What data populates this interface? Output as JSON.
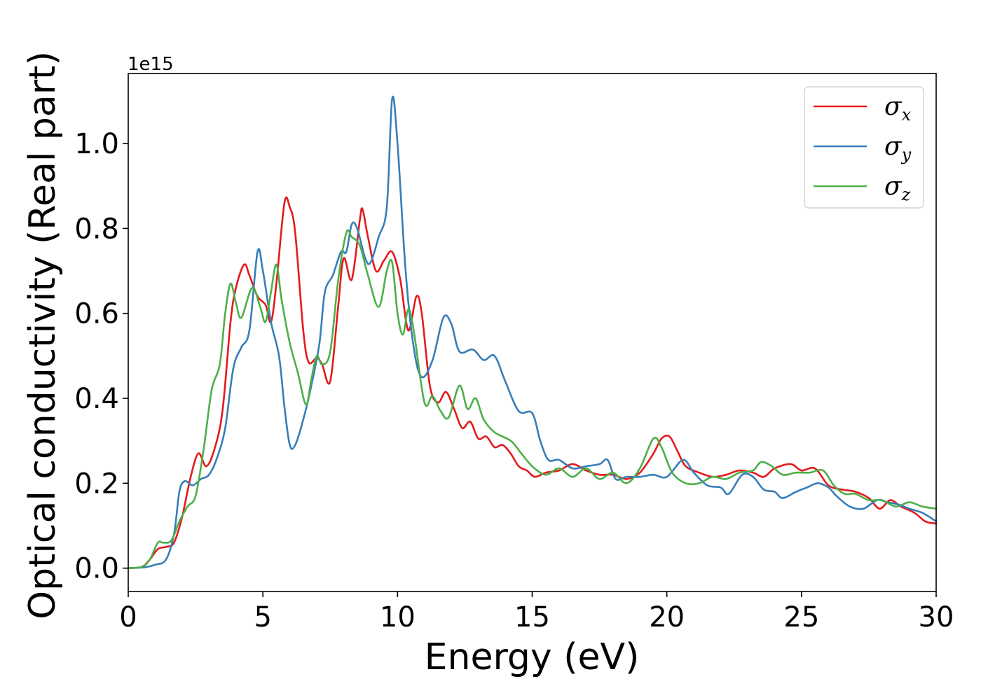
{
  "chart_data": {
    "type": "line",
    "title": "",
    "xlabel": "Energy (eV)",
    "ylabel": "Optical conductivity (Real part)",
    "y_offset_label": "1e15",
    "xlim": [
      0,
      30
    ],
    "ylim": [
      -0.055,
      1.165
    ],
    "x_ticks": [
      0,
      5,
      10,
      15,
      20,
      25,
      30
    ],
    "x_tick_labels": [
      "0",
      "5",
      "10",
      "15",
      "20",
      "25",
      "30"
    ],
    "y_ticks": [
      0.0,
      0.2,
      0.4,
      0.6,
      0.8,
      1.0
    ],
    "y_tick_labels": [
      "0.0",
      "0.2",
      "0.4",
      "0.6",
      "0.8",
      "1.0"
    ],
    "grid": false,
    "legend_position": "top-right",
    "series": [
      {
        "name": "σx",
        "legend_symbol": "σ",
        "legend_subscript": "x",
        "color": "#e41a1c",
        "points": [
          [
            0,
            0
          ],
          [
            0.5,
            0.003
          ],
          [
            0.8,
            0.02
          ],
          [
            1.1,
            0.045
          ],
          [
            1.4,
            0.05
          ],
          [
            1.7,
            0.06
          ],
          [
            2.0,
            0.12
          ],
          [
            2.3,
            0.21
          ],
          [
            2.6,
            0.27
          ],
          [
            2.9,
            0.24
          ],
          [
            3.2,
            0.28
          ],
          [
            3.5,
            0.37
          ],
          [
            3.8,
            0.58
          ],
          [
            4.0,
            0.66
          ],
          [
            4.3,
            0.715
          ],
          [
            4.5,
            0.69
          ],
          [
            4.8,
            0.64
          ],
          [
            5.1,
            0.62
          ],
          [
            5.3,
            0.58
          ],
          [
            5.5,
            0.67
          ],
          [
            5.8,
            0.86
          ],
          [
            6.0,
            0.85
          ],
          [
            6.2,
            0.79
          ],
          [
            6.5,
            0.56
          ],
          [
            6.7,
            0.485
          ],
          [
            7.0,
            0.495
          ],
          [
            7.2,
            0.48
          ],
          [
            7.5,
            0.44
          ],
          [
            7.8,
            0.62
          ],
          [
            8.0,
            0.73
          ],
          [
            8.3,
            0.68
          ],
          [
            8.6,
            0.82
          ],
          [
            8.7,
            0.845
          ],
          [
            8.9,
            0.78
          ],
          [
            9.2,
            0.7
          ],
          [
            9.5,
            0.725
          ],
          [
            9.8,
            0.745
          ],
          [
            10.1,
            0.68
          ],
          [
            10.4,
            0.56
          ],
          [
            10.7,
            0.64
          ],
          [
            10.9,
            0.6
          ],
          [
            11.2,
            0.43
          ],
          [
            11.5,
            0.39
          ],
          [
            11.8,
            0.415
          ],
          [
            12.1,
            0.375
          ],
          [
            12.4,
            0.33
          ],
          [
            12.7,
            0.345
          ],
          [
            13.0,
            0.305
          ],
          [
            13.3,
            0.31
          ],
          [
            13.6,
            0.285
          ],
          [
            13.9,
            0.29
          ],
          [
            14.2,
            0.27
          ],
          [
            14.5,
            0.24
          ],
          [
            14.8,
            0.23
          ],
          [
            15.1,
            0.215
          ],
          [
            15.5,
            0.225
          ],
          [
            16.0,
            0.23
          ],
          [
            16.5,
            0.245
          ],
          [
            17.0,
            0.23
          ],
          [
            17.5,
            0.22
          ],
          [
            18.0,
            0.22
          ],
          [
            18.5,
            0.21
          ],
          [
            19.0,
            0.225
          ],
          [
            19.5,
            0.27
          ],
          [
            19.8,
            0.305
          ],
          [
            20.1,
            0.31
          ],
          [
            20.4,
            0.275
          ],
          [
            20.7,
            0.24
          ],
          [
            21.2,
            0.225
          ],
          [
            21.7,
            0.215
          ],
          [
            22.2,
            0.22
          ],
          [
            22.7,
            0.23
          ],
          [
            23.2,
            0.225
          ],
          [
            23.6,
            0.215
          ],
          [
            24.0,
            0.235
          ],
          [
            24.6,
            0.245
          ],
          [
            25.0,
            0.23
          ],
          [
            25.5,
            0.235
          ],
          [
            26.0,
            0.195
          ],
          [
            26.5,
            0.185
          ],
          [
            27.0,
            0.18
          ],
          [
            27.5,
            0.165
          ],
          [
            27.9,
            0.14
          ],
          [
            28.3,
            0.16
          ],
          [
            28.7,
            0.145
          ],
          [
            29.2,
            0.13
          ],
          [
            29.6,
            0.11
          ],
          [
            30.0,
            0.105
          ]
        ]
      },
      {
        "name": "σy",
        "legend_symbol": "σ",
        "legend_subscript": "y",
        "color": "#377eb8",
        "points": [
          [
            0,
            0
          ],
          [
            0.6,
            0.002
          ],
          [
            1.0,
            0.008
          ],
          [
            1.4,
            0.02
          ],
          [
            1.7,
            0.08
          ],
          [
            1.9,
            0.18
          ],
          [
            2.1,
            0.205
          ],
          [
            2.4,
            0.195
          ],
          [
            2.7,
            0.21
          ],
          [
            3.0,
            0.22
          ],
          [
            3.3,
            0.26
          ],
          [
            3.6,
            0.33
          ],
          [
            3.9,
            0.47
          ],
          [
            4.2,
            0.52
          ],
          [
            4.5,
            0.56
          ],
          [
            4.8,
            0.745
          ],
          [
            5.0,
            0.7
          ],
          [
            5.3,
            0.58
          ],
          [
            5.6,
            0.5
          ],
          [
            5.8,
            0.38
          ],
          [
            6.0,
            0.29
          ],
          [
            6.2,
            0.29
          ],
          [
            6.5,
            0.35
          ],
          [
            6.8,
            0.43
          ],
          [
            7.1,
            0.53
          ],
          [
            7.3,
            0.65
          ],
          [
            7.6,
            0.69
          ],
          [
            7.9,
            0.745
          ],
          [
            8.1,
            0.745
          ],
          [
            8.3,
            0.81
          ],
          [
            8.5,
            0.8
          ],
          [
            8.8,
            0.73
          ],
          [
            9.0,
            0.72
          ],
          [
            9.3,
            0.78
          ],
          [
            9.6,
            0.85
          ],
          [
            9.8,
            1.105
          ],
          [
            10.0,
            1.0
          ],
          [
            10.3,
            0.7
          ],
          [
            10.6,
            0.52
          ],
          [
            10.9,
            0.45
          ],
          [
            11.3,
            0.49
          ],
          [
            11.7,
            0.59
          ],
          [
            12.0,
            0.575
          ],
          [
            12.3,
            0.51
          ],
          [
            12.8,
            0.515
          ],
          [
            13.2,
            0.49
          ],
          [
            13.6,
            0.5
          ],
          [
            14.0,
            0.44
          ],
          [
            14.5,
            0.37
          ],
          [
            15.0,
            0.365
          ],
          [
            15.3,
            0.3
          ],
          [
            15.6,
            0.255
          ],
          [
            16.0,
            0.255
          ],
          [
            16.5,
            0.235
          ],
          [
            17.0,
            0.24
          ],
          [
            17.5,
            0.245
          ],
          [
            17.8,
            0.255
          ],
          [
            18.1,
            0.21
          ],
          [
            18.5,
            0.215
          ],
          [
            19.0,
            0.215
          ],
          [
            19.5,
            0.22
          ],
          [
            20.0,
            0.215
          ],
          [
            20.6,
            0.255
          ],
          [
            21.0,
            0.225
          ],
          [
            21.5,
            0.195
          ],
          [
            22.0,
            0.19
          ],
          [
            22.3,
            0.175
          ],
          [
            22.8,
            0.22
          ],
          [
            23.2,
            0.215
          ],
          [
            23.6,
            0.185
          ],
          [
            24.0,
            0.18
          ],
          [
            24.3,
            0.165
          ],
          [
            24.8,
            0.18
          ],
          [
            25.2,
            0.19
          ],
          [
            25.6,
            0.2
          ],
          [
            26.0,
            0.19
          ],
          [
            26.3,
            0.17
          ],
          [
            26.8,
            0.145
          ],
          [
            27.3,
            0.14
          ],
          [
            27.8,
            0.16
          ],
          [
            28.2,
            0.155
          ],
          [
            28.6,
            0.15
          ],
          [
            29.0,
            0.14
          ],
          [
            29.5,
            0.13
          ],
          [
            30.0,
            0.11
          ]
        ]
      },
      {
        "name": "σz",
        "legend_symbol": "σ",
        "legend_subscript": "z",
        "color": "#4daf4a",
        "points": [
          [
            0,
            0
          ],
          [
            0.5,
            0.003
          ],
          [
            0.8,
            0.02
          ],
          [
            1.1,
            0.06
          ],
          [
            1.3,
            0.06
          ],
          [
            1.6,
            0.065
          ],
          [
            1.9,
            0.11
          ],
          [
            2.2,
            0.145
          ],
          [
            2.5,
            0.17
          ],
          [
            2.8,
            0.28
          ],
          [
            3.1,
            0.42
          ],
          [
            3.4,
            0.48
          ],
          [
            3.6,
            0.6
          ],
          [
            3.8,
            0.67
          ],
          [
            4.0,
            0.625
          ],
          [
            4.2,
            0.59
          ],
          [
            4.6,
            0.66
          ],
          [
            4.9,
            0.615
          ],
          [
            5.1,
            0.58
          ],
          [
            5.3,
            0.65
          ],
          [
            5.5,
            0.715
          ],
          [
            5.7,
            0.63
          ],
          [
            6.0,
            0.53
          ],
          [
            6.3,
            0.46
          ],
          [
            6.6,
            0.385
          ],
          [
            6.8,
            0.445
          ],
          [
            7.0,
            0.5
          ],
          [
            7.2,
            0.48
          ],
          [
            7.5,
            0.51
          ],
          [
            7.8,
            0.68
          ],
          [
            8.1,
            0.79
          ],
          [
            8.3,
            0.78
          ],
          [
            8.6,
            0.76
          ],
          [
            8.9,
            0.69
          ],
          [
            9.3,
            0.615
          ],
          [
            9.6,
            0.7
          ],
          [
            9.8,
            0.72
          ],
          [
            10.0,
            0.6
          ],
          [
            10.2,
            0.55
          ],
          [
            10.4,
            0.61
          ],
          [
            10.6,
            0.56
          ],
          [
            11.0,
            0.39
          ],
          [
            11.3,
            0.405
          ],
          [
            11.6,
            0.37
          ],
          [
            11.9,
            0.355
          ],
          [
            12.3,
            0.43
          ],
          [
            12.6,
            0.375
          ],
          [
            12.9,
            0.4
          ],
          [
            13.2,
            0.35
          ],
          [
            13.6,
            0.32
          ],
          [
            14.2,
            0.3
          ],
          [
            14.6,
            0.27
          ],
          [
            15.0,
            0.24
          ],
          [
            15.5,
            0.22
          ],
          [
            16.0,
            0.235
          ],
          [
            16.5,
            0.215
          ],
          [
            17.0,
            0.235
          ],
          [
            17.5,
            0.21
          ],
          [
            18.0,
            0.225
          ],
          [
            18.5,
            0.2
          ],
          [
            19.0,
            0.235
          ],
          [
            19.5,
            0.305
          ],
          [
            19.8,
            0.285
          ],
          [
            20.2,
            0.225
          ],
          [
            20.7,
            0.2
          ],
          [
            21.2,
            0.2
          ],
          [
            21.7,
            0.215
          ],
          [
            22.2,
            0.21
          ],
          [
            22.7,
            0.225
          ],
          [
            23.2,
            0.23
          ],
          [
            23.5,
            0.25
          ],
          [
            23.9,
            0.24
          ],
          [
            24.3,
            0.22
          ],
          [
            24.8,
            0.225
          ],
          [
            25.3,
            0.225
          ],
          [
            25.8,
            0.23
          ],
          [
            26.2,
            0.195
          ],
          [
            26.6,
            0.175
          ],
          [
            27.0,
            0.175
          ],
          [
            27.5,
            0.16
          ],
          [
            28.0,
            0.16
          ],
          [
            28.5,
            0.145
          ],
          [
            29.0,
            0.155
          ],
          [
            29.5,
            0.145
          ],
          [
            30.0,
            0.14
          ]
        ]
      }
    ]
  }
}
